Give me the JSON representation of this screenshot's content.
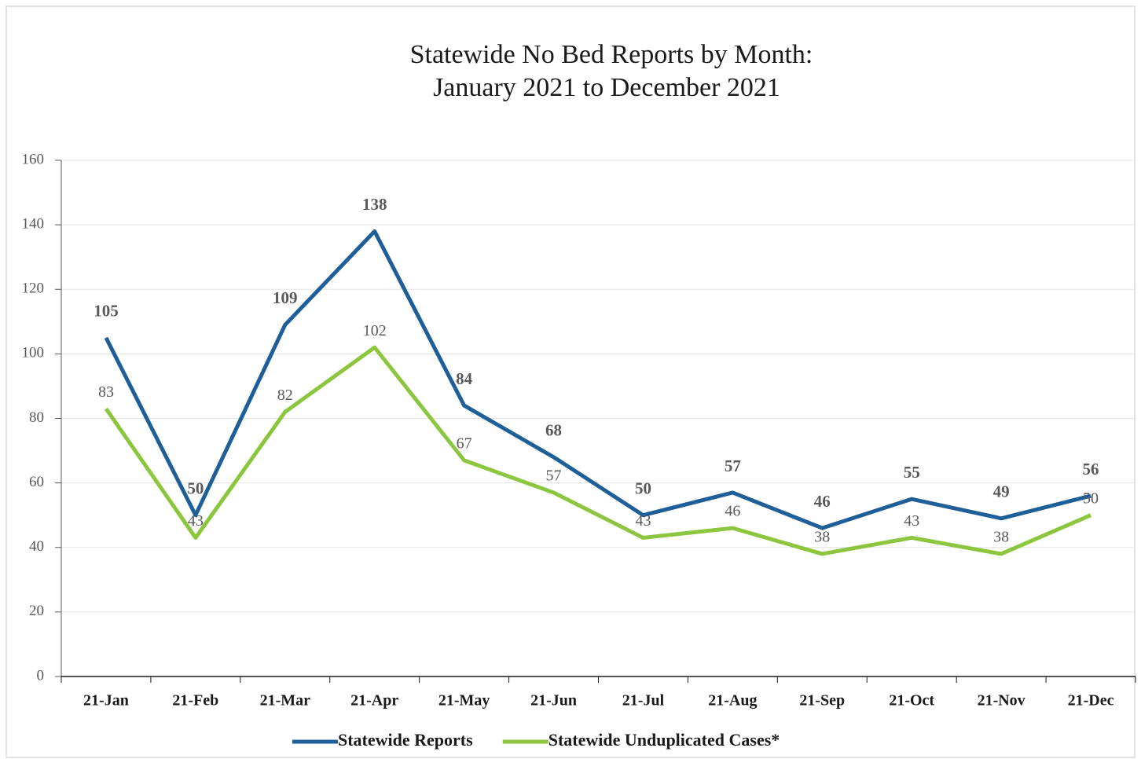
{
  "chart_data": {
    "type": "line",
    "title": [
      "Statewide No Bed Reports by Month:",
      "January 2021 to December 2021"
    ],
    "categories": [
      "21-Jan",
      "21-Feb",
      "21-Mar",
      "21-Apr",
      "21-May",
      "21-Jun",
      "21-Jul",
      "21-Aug",
      "21-Sep",
      "21-Oct",
      "21-Nov",
      "21-Dec"
    ],
    "series": [
      {
        "name": "Statewide Reports",
        "color": "#1f5f99",
        "values": [
          105,
          50,
          109,
          138,
          84,
          68,
          50,
          57,
          46,
          55,
          49,
          56
        ]
      },
      {
        "name": "Statewide Unduplicated Cases*",
        "color": "#8cc63f",
        "values": [
          83,
          43,
          82,
          102,
          67,
          57,
          43,
          46,
          38,
          43,
          38,
          50
        ]
      }
    ],
    "ylim": [
      0,
      160
    ],
    "yticks": [
      0,
      20,
      40,
      60,
      80,
      100,
      120,
      140,
      160
    ],
    "grid": true,
    "legend": "bottom"
  }
}
